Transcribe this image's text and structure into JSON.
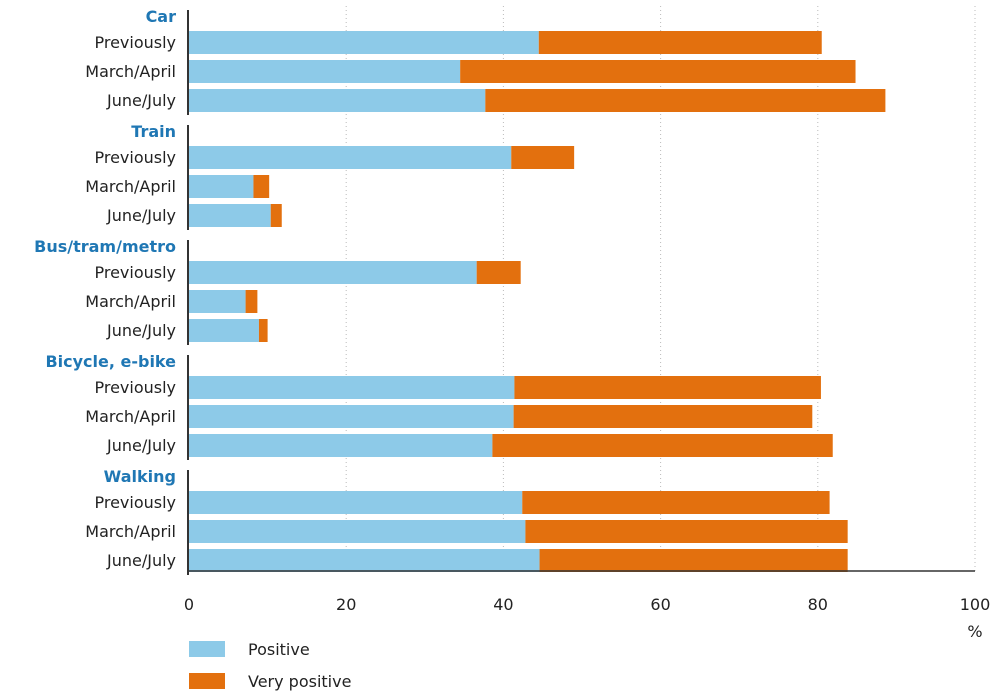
{
  "chart_data": {
    "type": "bar",
    "orientation": "horizontal",
    "stacked": true,
    "title": "",
    "xlabel": "",
    "ylabel": "",
    "x_unit": "%",
    "xlim": [
      0,
      100
    ],
    "xticks": [
      0,
      20,
      40,
      60,
      80,
      100
    ],
    "grid": true,
    "legend_position": "bottom-left",
    "colors": {
      "positive": "#8dcae8",
      "very_positive": "#e3700e",
      "group_label": "#1f77b4",
      "text": "#222222",
      "grid": "#bbbbbb",
      "axis": "#333333"
    },
    "legend": [
      {
        "key": "positive",
        "label": "Positive"
      },
      {
        "key": "very_positive",
        "label": "Very positive"
      }
    ],
    "groups": [
      {
        "name": "Car",
        "bars": [
          {
            "label": "Previously",
            "positive": 44.5,
            "very_positive": 36.0
          },
          {
            "label": "March/April",
            "positive": 34.5,
            "very_positive": 50.3
          },
          {
            "label": "June/July",
            "positive": 37.7,
            "very_positive": 50.9
          }
        ]
      },
      {
        "name": "Train",
        "bars": [
          {
            "label": "Previously",
            "positive": 41.0,
            "very_positive": 8.0
          },
          {
            "label": "March/April",
            "positive": 8.2,
            "very_positive": 2.0
          },
          {
            "label": "June/July",
            "positive": 10.4,
            "very_positive": 1.4
          }
        ]
      },
      {
        "name": "Bus/tram/metro",
        "bars": [
          {
            "label": "Previously",
            "positive": 36.6,
            "very_positive": 5.6
          },
          {
            "label": "March/April",
            "positive": 7.2,
            "very_positive": 1.5
          },
          {
            "label": "June/July",
            "positive": 8.9,
            "very_positive": 1.1
          }
        ]
      },
      {
        "name": "Bicycle, e-bike",
        "bars": [
          {
            "label": "Previously",
            "positive": 41.4,
            "very_positive": 39.0
          },
          {
            "label": "March/April",
            "positive": 41.3,
            "very_positive": 38.0
          },
          {
            "label": "June/July",
            "positive": 38.6,
            "very_positive": 43.3
          }
        ]
      },
      {
        "name": "Walking",
        "bars": [
          {
            "label": "Previously",
            "positive": 42.4,
            "very_positive": 39.1
          },
          {
            "label": "March/April",
            "positive": 42.8,
            "very_positive": 41.0
          },
          {
            "label": "June/July",
            "positive": 44.6,
            "very_positive": 39.2
          }
        ]
      }
    ]
  }
}
